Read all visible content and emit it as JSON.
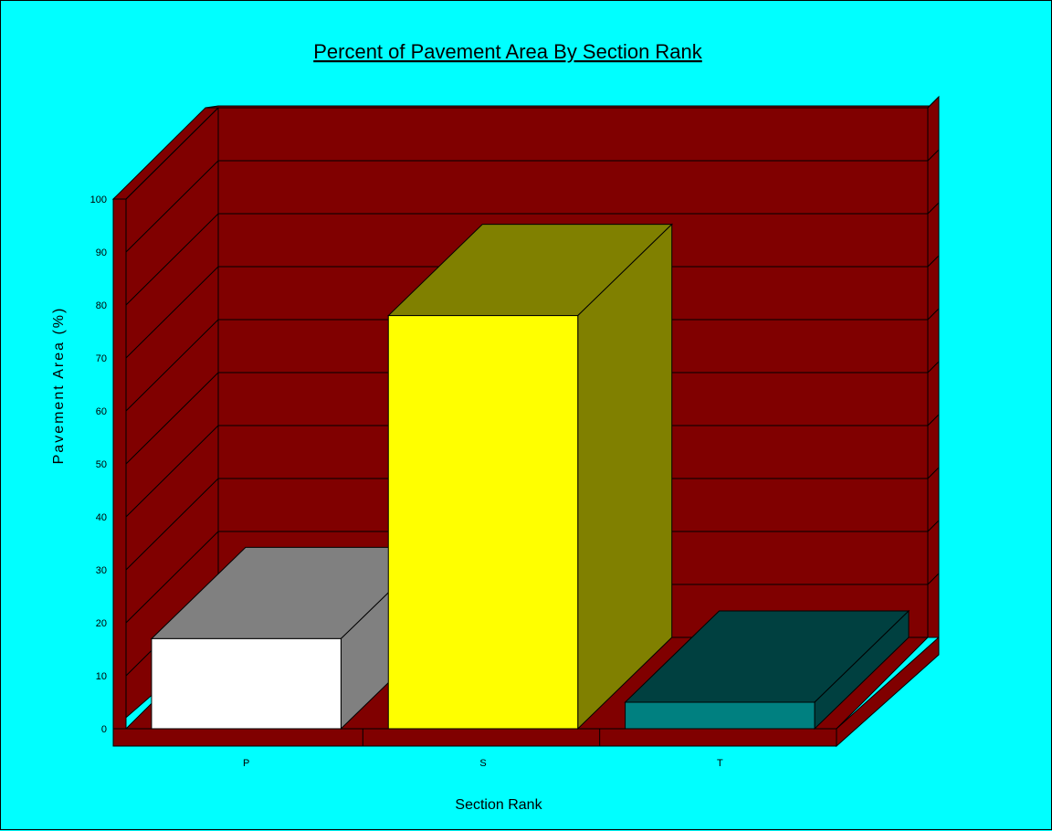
{
  "chart_data": {
    "type": "bar",
    "title": "Percent of Pavement Area By Section Rank",
    "xlabel": "Section Rank",
    "ylabel": "Pavement Area (%)",
    "categories": [
      "P",
      "S",
      "T"
    ],
    "values": [
      17,
      78,
      5
    ],
    "ylim": [
      0,
      100
    ],
    "yticks": [
      0,
      10,
      20,
      30,
      40,
      50,
      60,
      70,
      80,
      90,
      100
    ],
    "grid": true,
    "colors": {
      "background": "#00FFFF",
      "walls": "#800000",
      "bars": [
        {
          "front": "#FFFFFF",
          "side": "#808080",
          "top": "#808080"
        },
        {
          "front": "#FFFF00",
          "side": "#808000",
          "top": "#808000"
        },
        {
          "front": "#008080",
          "side": "#004040",
          "top": "#004040"
        }
      ]
    }
  }
}
